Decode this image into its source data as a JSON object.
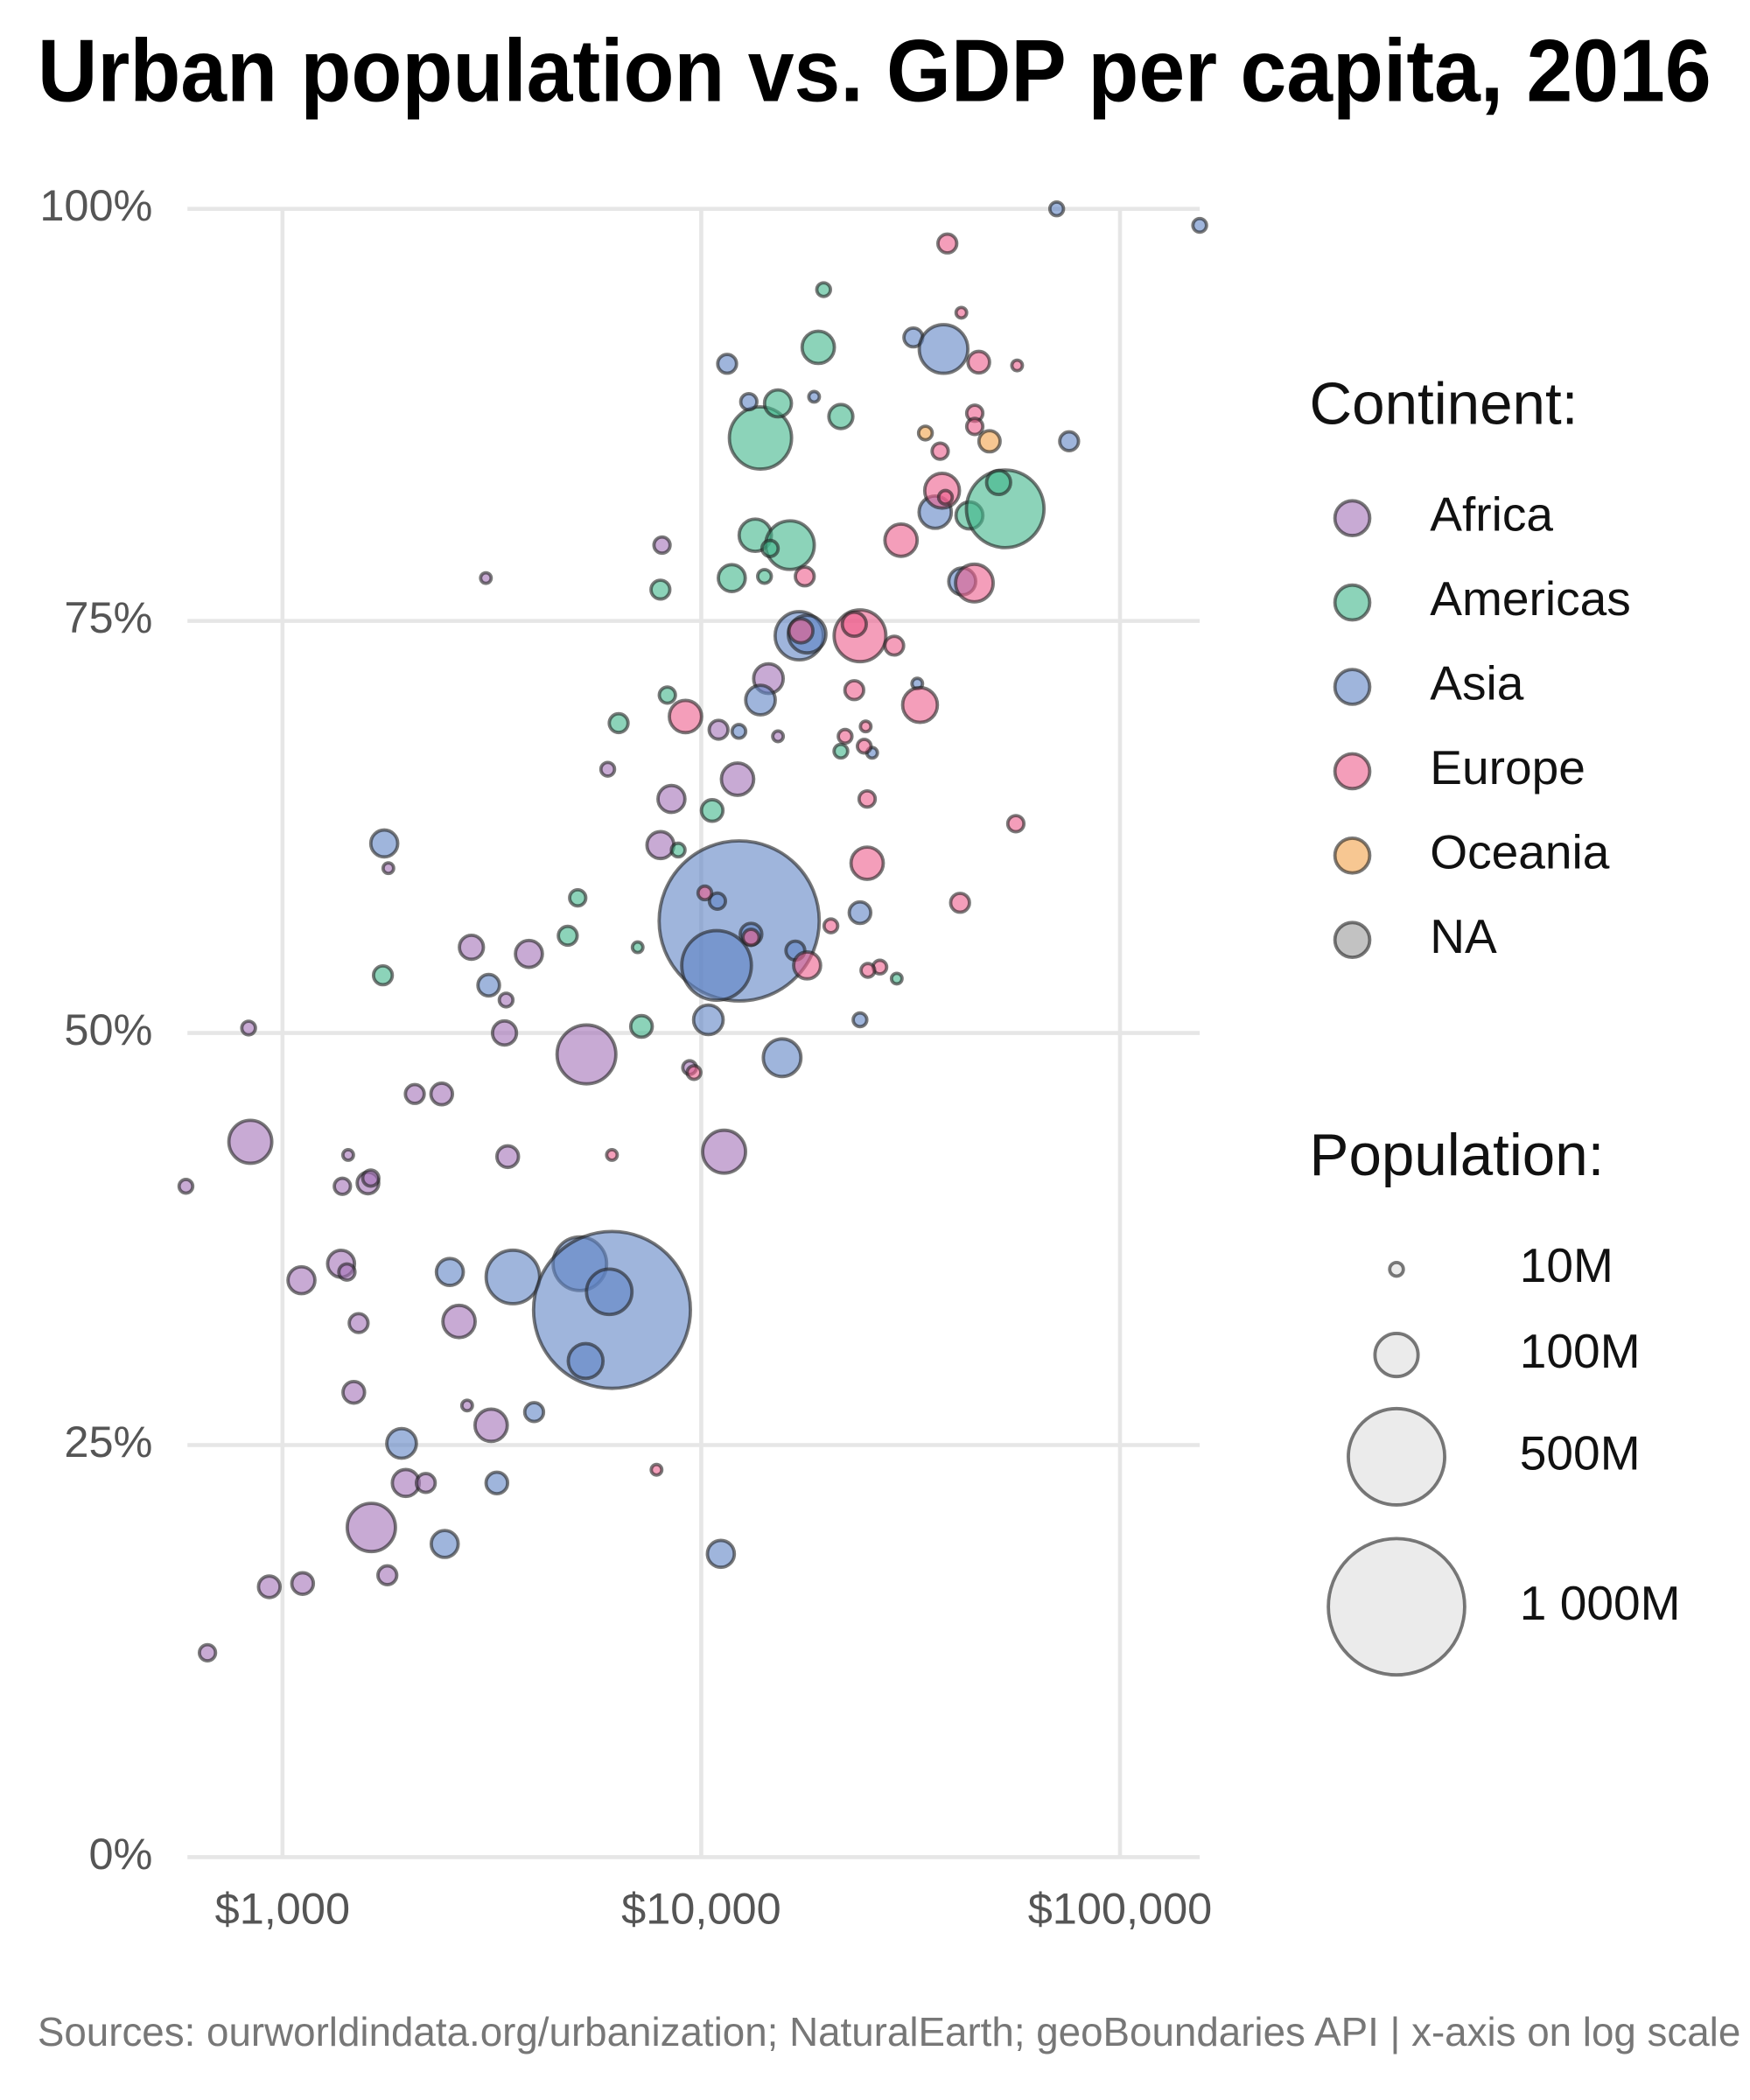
{
  "chart_data": {
    "type": "scatter",
    "title": "Urban population vs. GDP per capita, 2016",
    "caption": "Sources: ourworldindata.org/urbanization; NaturalEarth; geoBoundaries API | x-axis on log scale",
    "log_x": true,
    "grid": true,
    "xlim": [
      593,
      155000
    ],
    "ylim": [
      0,
      100
    ],
    "xticks": [
      {
        "value": 1000,
        "label": "$1,000"
      },
      {
        "value": 10000,
        "label": "$10,000"
      },
      {
        "value": 100000,
        "label": "$100,000"
      }
    ],
    "yticks": [
      {
        "value": 0,
        "label": "0%"
      },
      {
        "value": 25,
        "label": "25%"
      },
      {
        "value": 50,
        "label": "50%"
      },
      {
        "value": 75,
        "label": "75%"
      },
      {
        "value": 100,
        "label": "100%"
      }
    ],
    "legend_title": "Continent:",
    "legend_position": "right",
    "size_legend_title": "Population:",
    "size_legend": [
      {
        "value": 10,
        "label": "10M"
      },
      {
        "value": 100,
        "label": "100M"
      },
      {
        "value": 500,
        "label": "500M"
      },
      {
        "value": 1000,
        "label": "1 000M"
      }
    ],
    "series": [
      {
        "name": "Africa",
        "color": "#a472b8",
        "x": [
          662,
          930,
          1117,
          1630,
          1780,
          1970,
          2199,
          1480,
          1520,
          2640,
          3150,
          2760,
          1110,
          1380,
          1425,
          588,
          838,
          1390,
          1600,
          1625,
          1435,
          2070,
          2400,
          3450,
          5320,
          11340,
          830,
          3390,
          2826,
          3877,
          3420,
          1790,
          7990,
          8490,
          12210,
          5980,
          14470,
          11000,
          15250,
          8060,
          3060,
          9380
        ],
        "values": [
          12.4,
          16.4,
          16.6,
          20.0,
          17.1,
          22.7,
          22.7,
          28.2,
          32.4,
          32.5,
          26.2,
          27.4,
          35.0,
          36.0,
          35.5,
          40.7,
          43.4,
          40.7,
          40.9,
          41.2,
          42.6,
          46.3,
          46.3,
          42.5,
          48.7,
          42.8,
          50.3,
          50.0,
          55.2,
          54.8,
          52.0,
          60.0,
          61.4,
          64.2,
          65.4,
          66.0,
          71.5,
          68.4,
          68.0,
          79.6,
          77.6,
          47.9
        ],
        "sizes": [
          14,
          25,
          25,
          125,
          19,
          39,
          19,
          25,
          19,
          56,
          56,
          6,
          39,
          39,
          14,
          10,
          99,
          14,
          25,
          14,
          6,
          19,
          25,
          25,
          186,
          99,
          10,
          31,
          31,
          39,
          10,
          6,
          39,
          39,
          56,
          10,
          47,
          19,
          6,
          14,
          6,
          10
        ]
      },
      {
        "name": "Americas",
        "color": "#3fb58a",
        "x": [
          1737,
          5070,
          4800,
          7050,
          7200,
          6350,
          8300,
          10620,
          8810,
          7990,
          11830,
          14160,
          13460,
          16290,
          13850,
          15250,
          21550,
          19030,
          19600,
          43700,
          53200,
          51300,
          14600,
          21550,
          29300
        ],
        "values": [
          53.5,
          58.2,
          55.9,
          55.2,
          50.4,
          68.8,
          70.5,
          63.5,
          61.1,
          76.9,
          77.6,
          77.7,
          80.2,
          79.6,
          86.1,
          88.2,
          87.4,
          91.6,
          95.1,
          81.4,
          81.8,
          83.4,
          79.4,
          67.1,
          53.3
        ],
        "sizes": [
          19,
          14,
          19,
          6,
          25,
          19,
          14,
          25,
          10,
          19,
          39,
          10,
          56,
          127,
          208,
          39,
          31,
          56,
          10,
          39,
          324,
          31,
          14,
          10,
          6
        ]
      },
      {
        "name": "Asia",
        "color": "#5f83c4",
        "x": [
          1750,
          3108,
          2510,
          3550,
          5130,
          6122,
          6030,
          5296,
          3990,
          1925,
          3250,
          2440,
          11140,
          10400,
          15600,
          12320,
          10880,
          13150,
          10930,
          16780,
          23940,
          23940,
          13850,
          12300,
          17140,
          17900,
          25590,
          11530,
          12990,
          18600,
          32100,
          37900,
          36200,
          42000,
          32800,
          75600,
          70600,
          155000
        ],
        "values": [
          61.5,
          52.9,
          35.5,
          35.2,
          36.0,
          33.2,
          34.3,
          30.1,
          27.0,
          25.1,
          22.7,
          19.0,
          18.4,
          50.8,
          48.5,
          56.8,
          54.1,
          56.0,
          58.0,
          55.0,
          57.3,
          50.8,
          70.2,
          68.3,
          74.1,
          74.2,
          67.0,
          90.6,
          88.3,
          88.6,
          92.2,
          91.5,
          81.6,
          77.4,
          71.2,
          85.9,
          100,
          99.0
        ],
        "sizes": [
          39,
          25,
          39,
          154,
          154,
          1324,
          111,
          65,
          19,
          47,
          25,
          39,
          39,
          47,
          76,
          1379,
          261,
          25,
          14,
          19,
          25,
          10,
          47,
          10,
          125,
          76,
          6,
          19,
          14,
          6,
          19,
          127,
          56,
          39,
          6,
          19,
          10,
          10
        ]
      },
      {
        "name": "Europe",
        "color": "#ec5d8c",
        "x": [
          6120,
          7820,
          9610,
          9170,
          10200,
          13150,
          17900,
          20400,
          17300,
          17670,
          23940,
          23200,
          23200,
          24900,
          24900,
          22060,
          24700,
          24500,
          26700,
          25000,
          28900,
          30000,
          33300,
          41500,
          37600,
          44900,
          38700,
          41800,
          46000,
          45000,
          45000,
          37200,
          38300,
          56800,
          56400
        ],
        "values": [
          42.6,
          23.5,
          47.6,
          69.2,
          58.5,
          55.8,
          54.1,
          56.5,
          74.4,
          77.7,
          74.1,
          74.8,
          70.8,
          64.2,
          60.3,
          68.0,
          68.6,
          67.4,
          54.0,
          53.8,
          73.5,
          79.9,
          69.9,
          57.9,
          82.9,
          77.3,
          97.9,
          93.7,
          90.7,
          87.6,
          86.8,
          85.3,
          82.5,
          90.5,
          62.7
        ],
        "sizes": [
          6,
          6,
          10,
          56,
          10,
          14,
          39,
          10,
          31,
          19,
          144,
          31,
          19,
          14,
          56,
          10,
          6,
          10,
          10,
          10,
          19,
          56,
          65,
          19,
          65,
          76,
          19,
          6,
          25,
          14,
          14,
          14,
          10,
          6,
          14
        ]
      },
      {
        "name": "Oceania",
        "color": "#f2a24a",
        "x": [
          48800,
          34300
        ],
        "values": [
          85.9,
          86.4
        ],
        "sizes": [
          24,
          10
        ]
      },
      {
        "name": "NA",
        "color": "#999999",
        "x": [],
        "values": [],
        "sizes": []
      }
    ]
  }
}
